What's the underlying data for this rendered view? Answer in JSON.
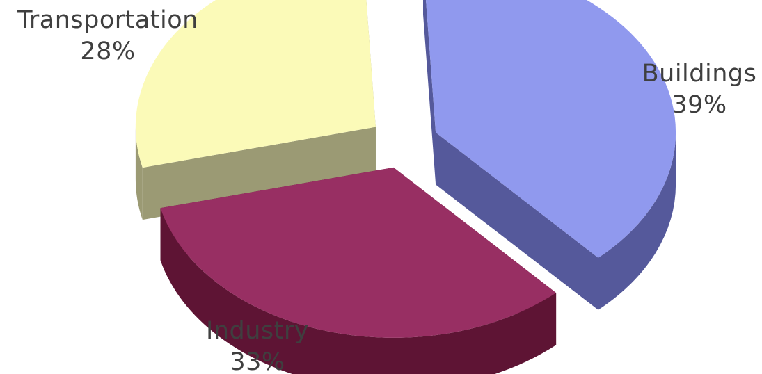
{
  "chart_data": {
    "type": "pie",
    "style": "3d-exploded",
    "legend": "none",
    "slices": [
      {
        "label": "Buildings",
        "percent_label": "39%",
        "value": 39,
        "top_color": "#9099ee",
        "side_color": "#55599b"
      },
      {
        "label": "Industry",
        "percent_label": "33%",
        "value": 33,
        "top_color": "#982f63",
        "side_color": "#5e1434"
      },
      {
        "label": "Transportation",
        "percent_label": "28%",
        "value": 28,
        "top_color": "#fbfab8",
        "side_color": "#9b9a74"
      }
    ]
  }
}
